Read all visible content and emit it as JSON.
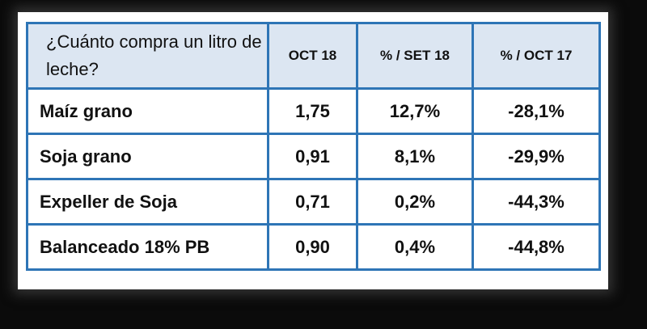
{
  "table": {
    "header": [
      "¿Cuánto compra un litro de leche?",
      "OCT 18",
      "% / SET 18",
      "% / OCT 17"
    ],
    "rows": [
      [
        "Maíz grano",
        "1,75",
        "12,7%",
        "-28,1%"
      ],
      [
        "Soja grano",
        "0,91",
        "8,1%",
        "-29,9%"
      ],
      [
        "Expeller de Soja",
        "0,71",
        "0,2%",
        "-44,3%"
      ],
      [
        "Balanceado 18% PB",
        "0,90",
        "0,4%",
        "-44,8%"
      ]
    ]
  }
}
